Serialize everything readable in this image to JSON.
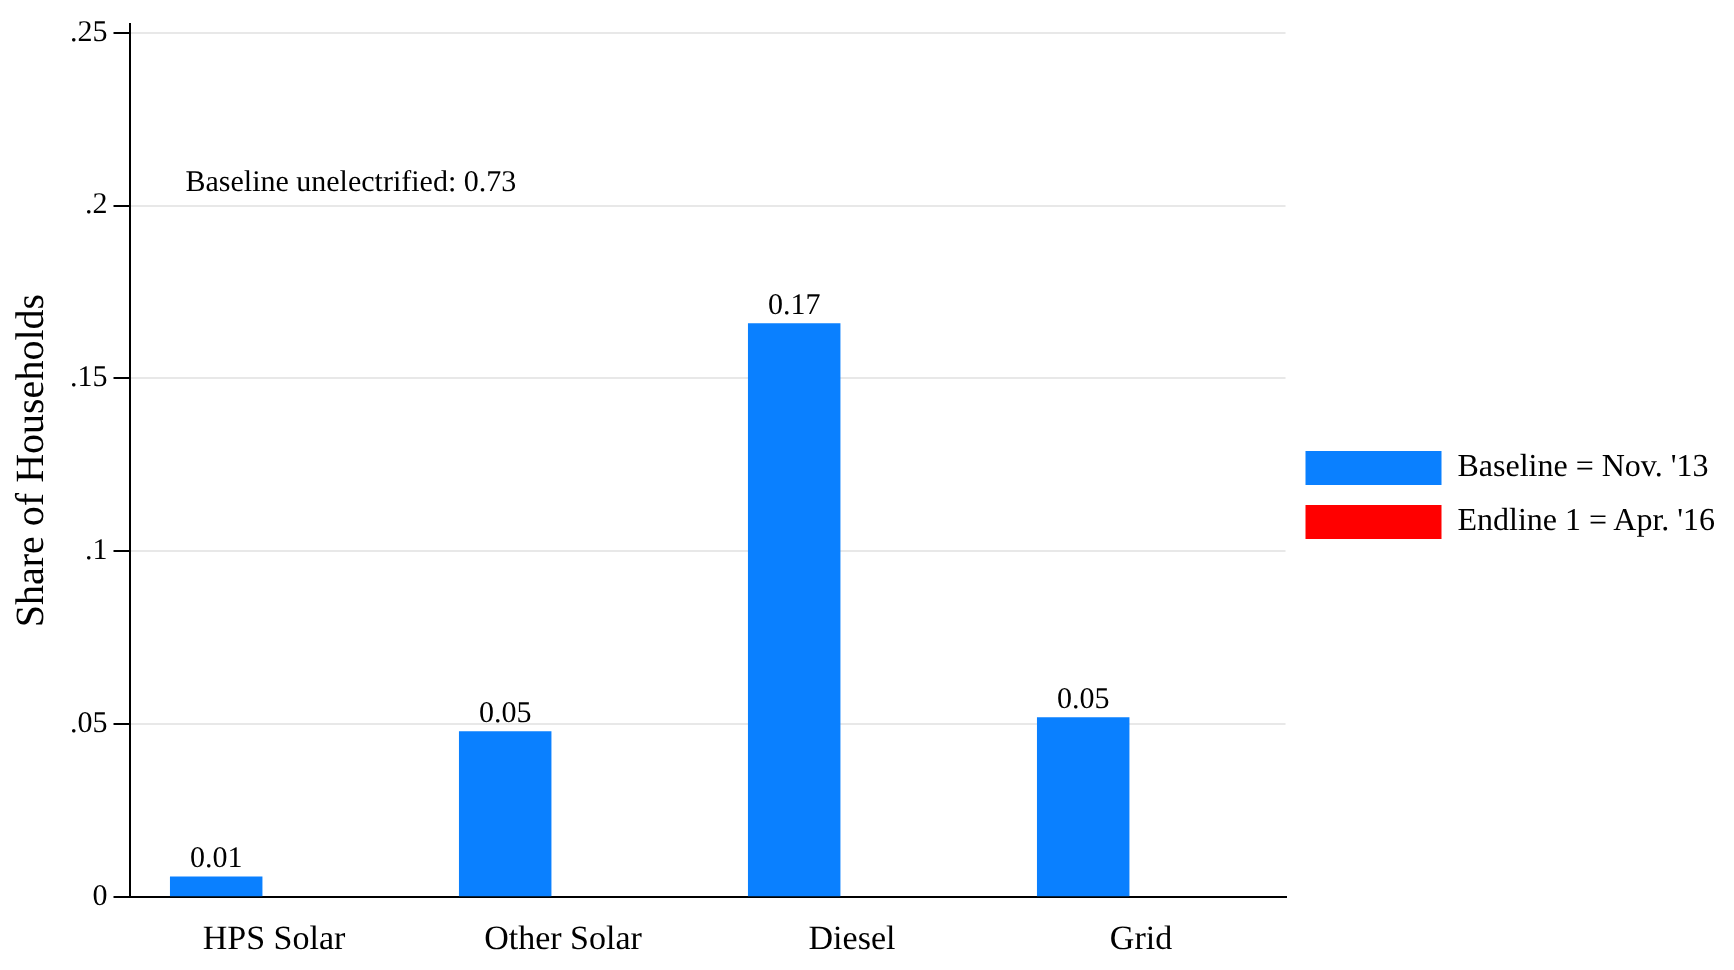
{
  "chart_data": {
    "type": "bar",
    "ylabel": "Share of Households",
    "categories": [
      "HPS Solar",
      "Other Solar",
      "Diesel",
      "Grid"
    ],
    "series": [
      {
        "name": "Baseline = Nov. '13",
        "color": "#0a80ff",
        "values": [
          0.006,
          0.048,
          0.166,
          0.052
        ],
        "value_labels": [
          "0.01",
          "0.05",
          "0.17",
          "0.05"
        ]
      },
      {
        "name": "Endline 1 = Apr. '16",
        "color": "#ff0000",
        "values": [
          null,
          null,
          null,
          null
        ]
      }
    ],
    "ylim": [
      0,
      0.2525
    ],
    "yticks": [
      {
        "value": 0,
        "label": "0"
      },
      {
        "value": 0.05,
        "label": ".05"
      },
      {
        "value": 0.1,
        "label": ".1"
      },
      {
        "value": 0.15,
        "label": ".15"
      },
      {
        "value": 0.2,
        "label": ".2"
      },
      {
        "value": 0.25,
        "label": ".25"
      }
    ],
    "grid": "y",
    "legend": "right",
    "annotations": [
      "Baseline unelectrified: 0.73"
    ]
  }
}
